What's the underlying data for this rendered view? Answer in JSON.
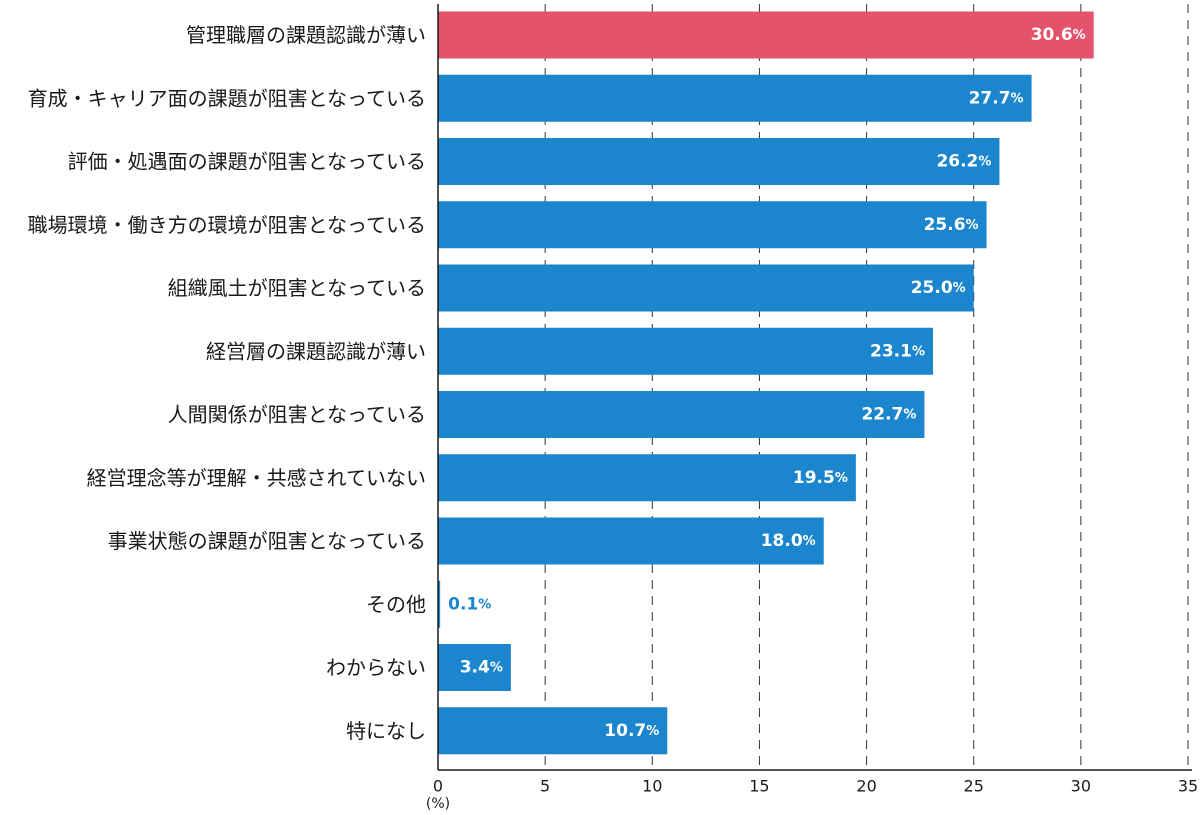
{
  "chart_data": {
    "type": "bar",
    "orientation": "horizontal",
    "categories": [
      "管理職層の課題認識が薄い",
      "育成・キャリア面の課題が阻害となっている",
      "評価・処遇面の課題が阻害となっている",
      "職場環境・働き方の環境が阻害となっている",
      "組織風土が阻害となっている",
      "経営層の課題認識が薄い",
      "人間関係が阻害となっている",
      "経営理念等が理解・共感されていない",
      "事業状態の課題が阻害となっている",
      "その他",
      "わからない",
      "特になし"
    ],
    "values": [
      30.6,
      27.7,
      26.2,
      25.6,
      25.0,
      23.1,
      22.7,
      19.5,
      18.0,
      0.1,
      3.4,
      10.7
    ],
    "value_labels": [
      "30.6",
      "27.7",
      "26.2",
      "25.6",
      "25.0",
      "23.1",
      "22.7",
      "19.5",
      "18.0",
      "0.1",
      "3.4",
      "10.7"
    ],
    "value_suffix": "%",
    "highlight_index": 0,
    "xlim": [
      0,
      35
    ],
    "xticks": [
      0,
      5,
      10,
      15,
      20,
      25,
      30,
      35
    ],
    "xlabel": "(%)",
    "grid": "dashed vertical",
    "colors": {
      "bar": "#1b86cd",
      "highlight": "#e5526b",
      "label_inside": "#ffffff",
      "label_outside": "#1b86cd"
    }
  }
}
